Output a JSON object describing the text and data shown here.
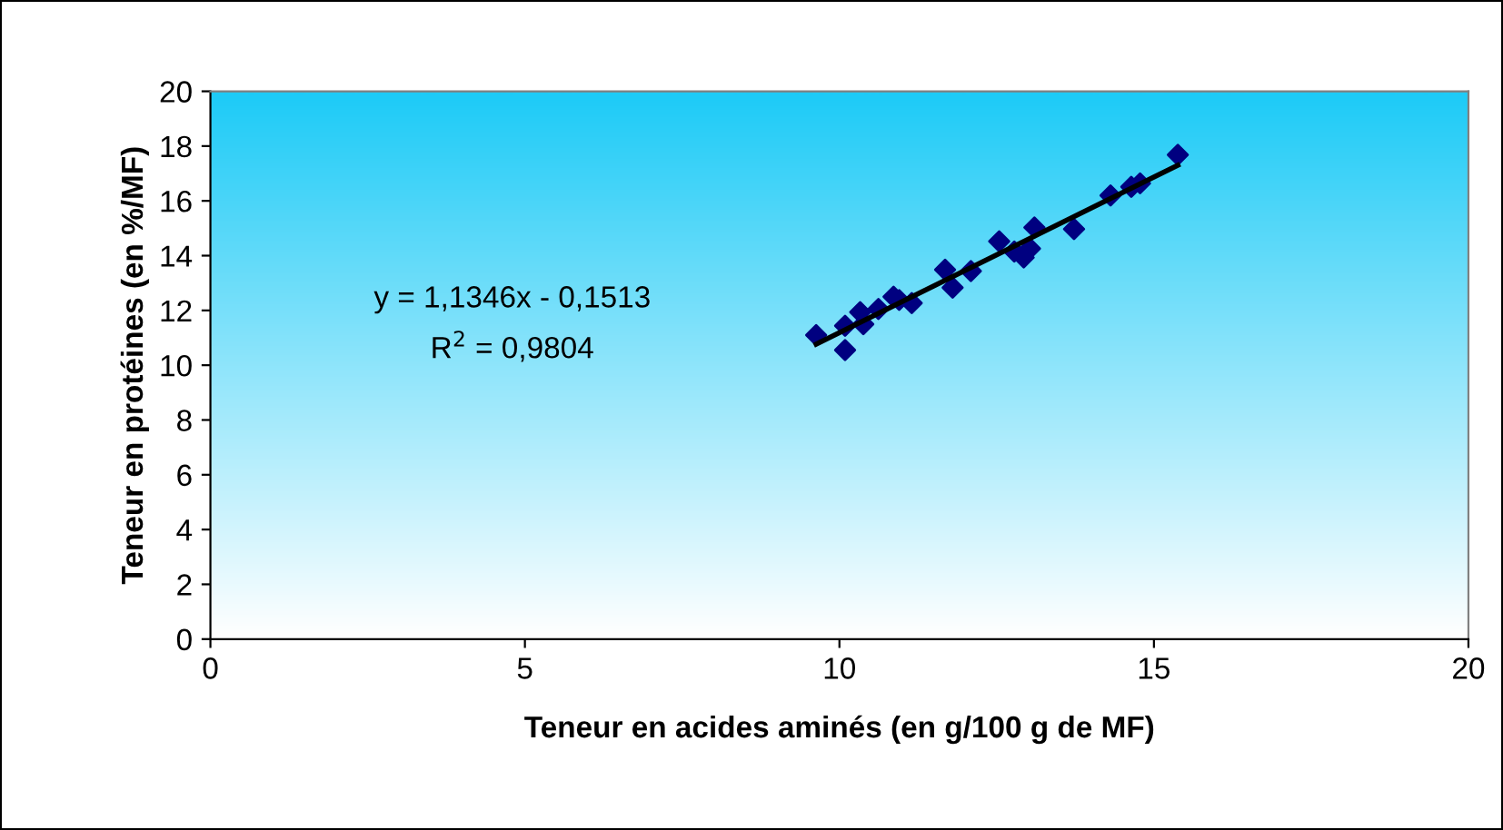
{
  "chart_data": {
    "type": "scatter",
    "xlabel": "Teneur en acides aminés (en g/100 g de MF)",
    "ylabel": "Teneur en protéines (en %/MF)",
    "annotations": [
      "y = 1,1346x - 0,1513",
      "R$^{2}$ = 0,9804"
    ],
    "xlim": [
      0,
      20
    ],
    "xticks": [
      0,
      5,
      10,
      15,
      20
    ],
    "ylim": [
      0,
      20
    ],
    "yticks": [
      0,
      2,
      4,
      6,
      8,
      10,
      12,
      14,
      16,
      18,
      20
    ],
    "grid": false,
    "legend": false,
    "series": [
      {
        "color": "#000080",
        "marker": "diamond",
        "x": [
          9.63,
          10.09,
          10.09,
          10.33,
          10.38,
          10.62,
          10.86,
          10.95,
          11.15,
          11.68,
          11.8,
          12.09,
          12.54,
          12.78,
          12.93,
          13.03,
          13.1,
          13.73,
          14.31,
          14.64,
          14.78,
          15.38
        ],
        "values": [
          11.1,
          11.44,
          10.55,
          11.94,
          11.5,
          12.05,
          12.5,
          12.38,
          12.27,
          13.49,
          12.83,
          13.44,
          14.52,
          14.15,
          13.93,
          14.26,
          15.03,
          14.97,
          16.2,
          16.51,
          16.64,
          17.68
        ]
      },
      {
        "type": "line",
        "color": "#000000",
        "line_style": "solid",
        "x": [
          9.63,
          15.38
        ],
        "values": [
          10.77,
          17.3
        ]
      }
    ]
  }
}
